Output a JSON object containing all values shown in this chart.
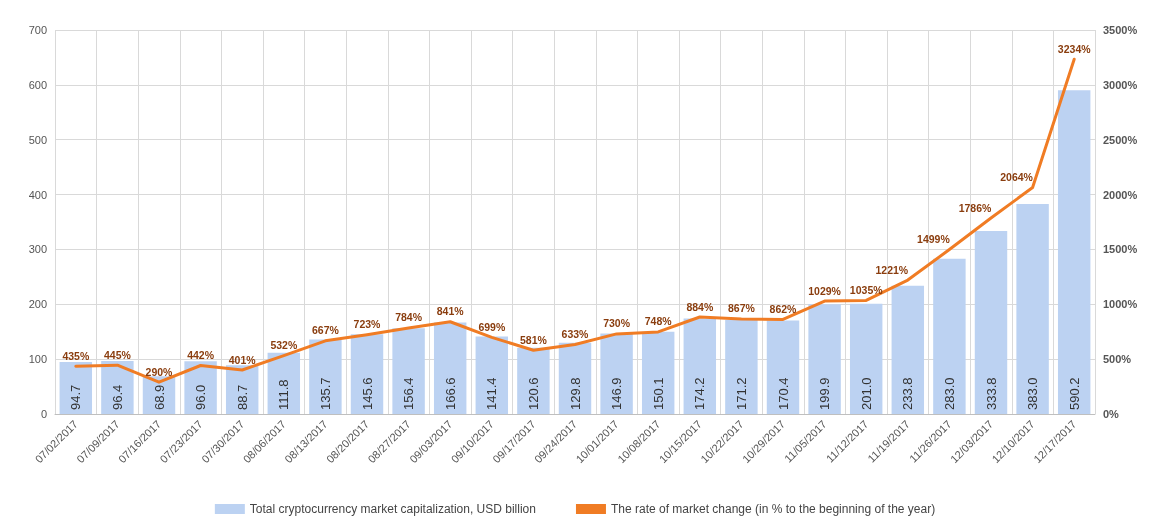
{
  "chart_data": {
    "type": "bar",
    "categories": [
      "07/02/2017",
      "07/09/2017",
      "07/16/2017",
      "07/23/2017",
      "07/30/2017",
      "08/06/2017",
      "08/13/2017",
      "08/20/2017",
      "08/27/2017",
      "09/03/2017",
      "09/10/2017",
      "09/17/2017",
      "09/24/2017",
      "10/01/2017",
      "10/08/2017",
      "10/15/2017",
      "10/22/2017",
      "10/29/2017",
      "11/05/2017",
      "11/12/2017",
      "11/19/2017",
      "11/26/2017",
      "12/03/2017",
      "12/10/2017",
      "12/17/2017"
    ],
    "series": [
      {
        "name": "Total cryptocurrency market capitalization, USD billion",
        "color": "#bcd2f2",
        "values": [
          94.7,
          96.4,
          68.9,
          96.0,
          88.7,
          111.8,
          135.7,
          145.6,
          156.4,
          166.6,
          141.4,
          120.6,
          129.8,
          146.9,
          150.1,
          174.2,
          171.2,
          170.4,
          199.9,
          201.0,
          233.8,
          283.0,
          333.8,
          383.0,
          590.2
        ],
        "value_labels": [
          "94.7",
          "96.4",
          "68.9",
          "96.0",
          "88.7",
          "111.8",
          "135.7",
          "145.6",
          "156.4",
          "166.6",
          "141.4",
          "120.6",
          "129.8",
          "146.9",
          "150.1",
          "174.2",
          "171.2",
          "170.4",
          "199.9",
          "201.0",
          "233.8",
          "283.0",
          "333.8",
          "383.0",
          "590.2"
        ]
      },
      {
        "name": "The rate of market change (in % to the beginning of the year)",
        "type": "line",
        "axis": "y2",
        "color": "#f07c24",
        "values": [
          435,
          445,
          290,
          442,
          401,
          532,
          667,
          723,
          784,
          841,
          699,
          581,
          633,
          730,
          748,
          884,
          867,
          862,
          1029,
          1035,
          1221,
          1499,
          1786,
          2064,
          3234
        ],
        "value_labels": [
          "435%",
          "445%",
          "290%",
          "442%",
          "401%",
          "532%",
          "667%",
          "723%",
          "784%",
          "841%",
          "699%",
          "581%",
          "633%",
          "730%",
          "748%",
          "884%",
          "867%",
          "862%",
          "1029%",
          "1035%",
          "1221%",
          "1499%",
          "1786%",
          "2064%",
          "3234%"
        ]
      }
    ],
    "ylim": [
      0,
      700
    ],
    "yticks": [
      0,
      100,
      200,
      300,
      400,
      500,
      600,
      700
    ],
    "y2lim": [
      0,
      3500
    ],
    "y2ticks": [
      {
        "value": 0,
        "label": "0%"
      },
      {
        "value": 500,
        "label": "500%"
      },
      {
        "value": 1000,
        "label": "1000%"
      },
      {
        "value": 1500,
        "label": "1500%"
      },
      {
        "value": 2000,
        "label": "2000%"
      },
      {
        "value": 2500,
        "label": "2500%"
      },
      {
        "value": 3000,
        "label": "3000%"
      },
      {
        "value": 3500,
        "label": "3500%"
      }
    ],
    "grid": true,
    "legend": "bottom",
    "marker": "none",
    "line_style": "solid"
  }
}
